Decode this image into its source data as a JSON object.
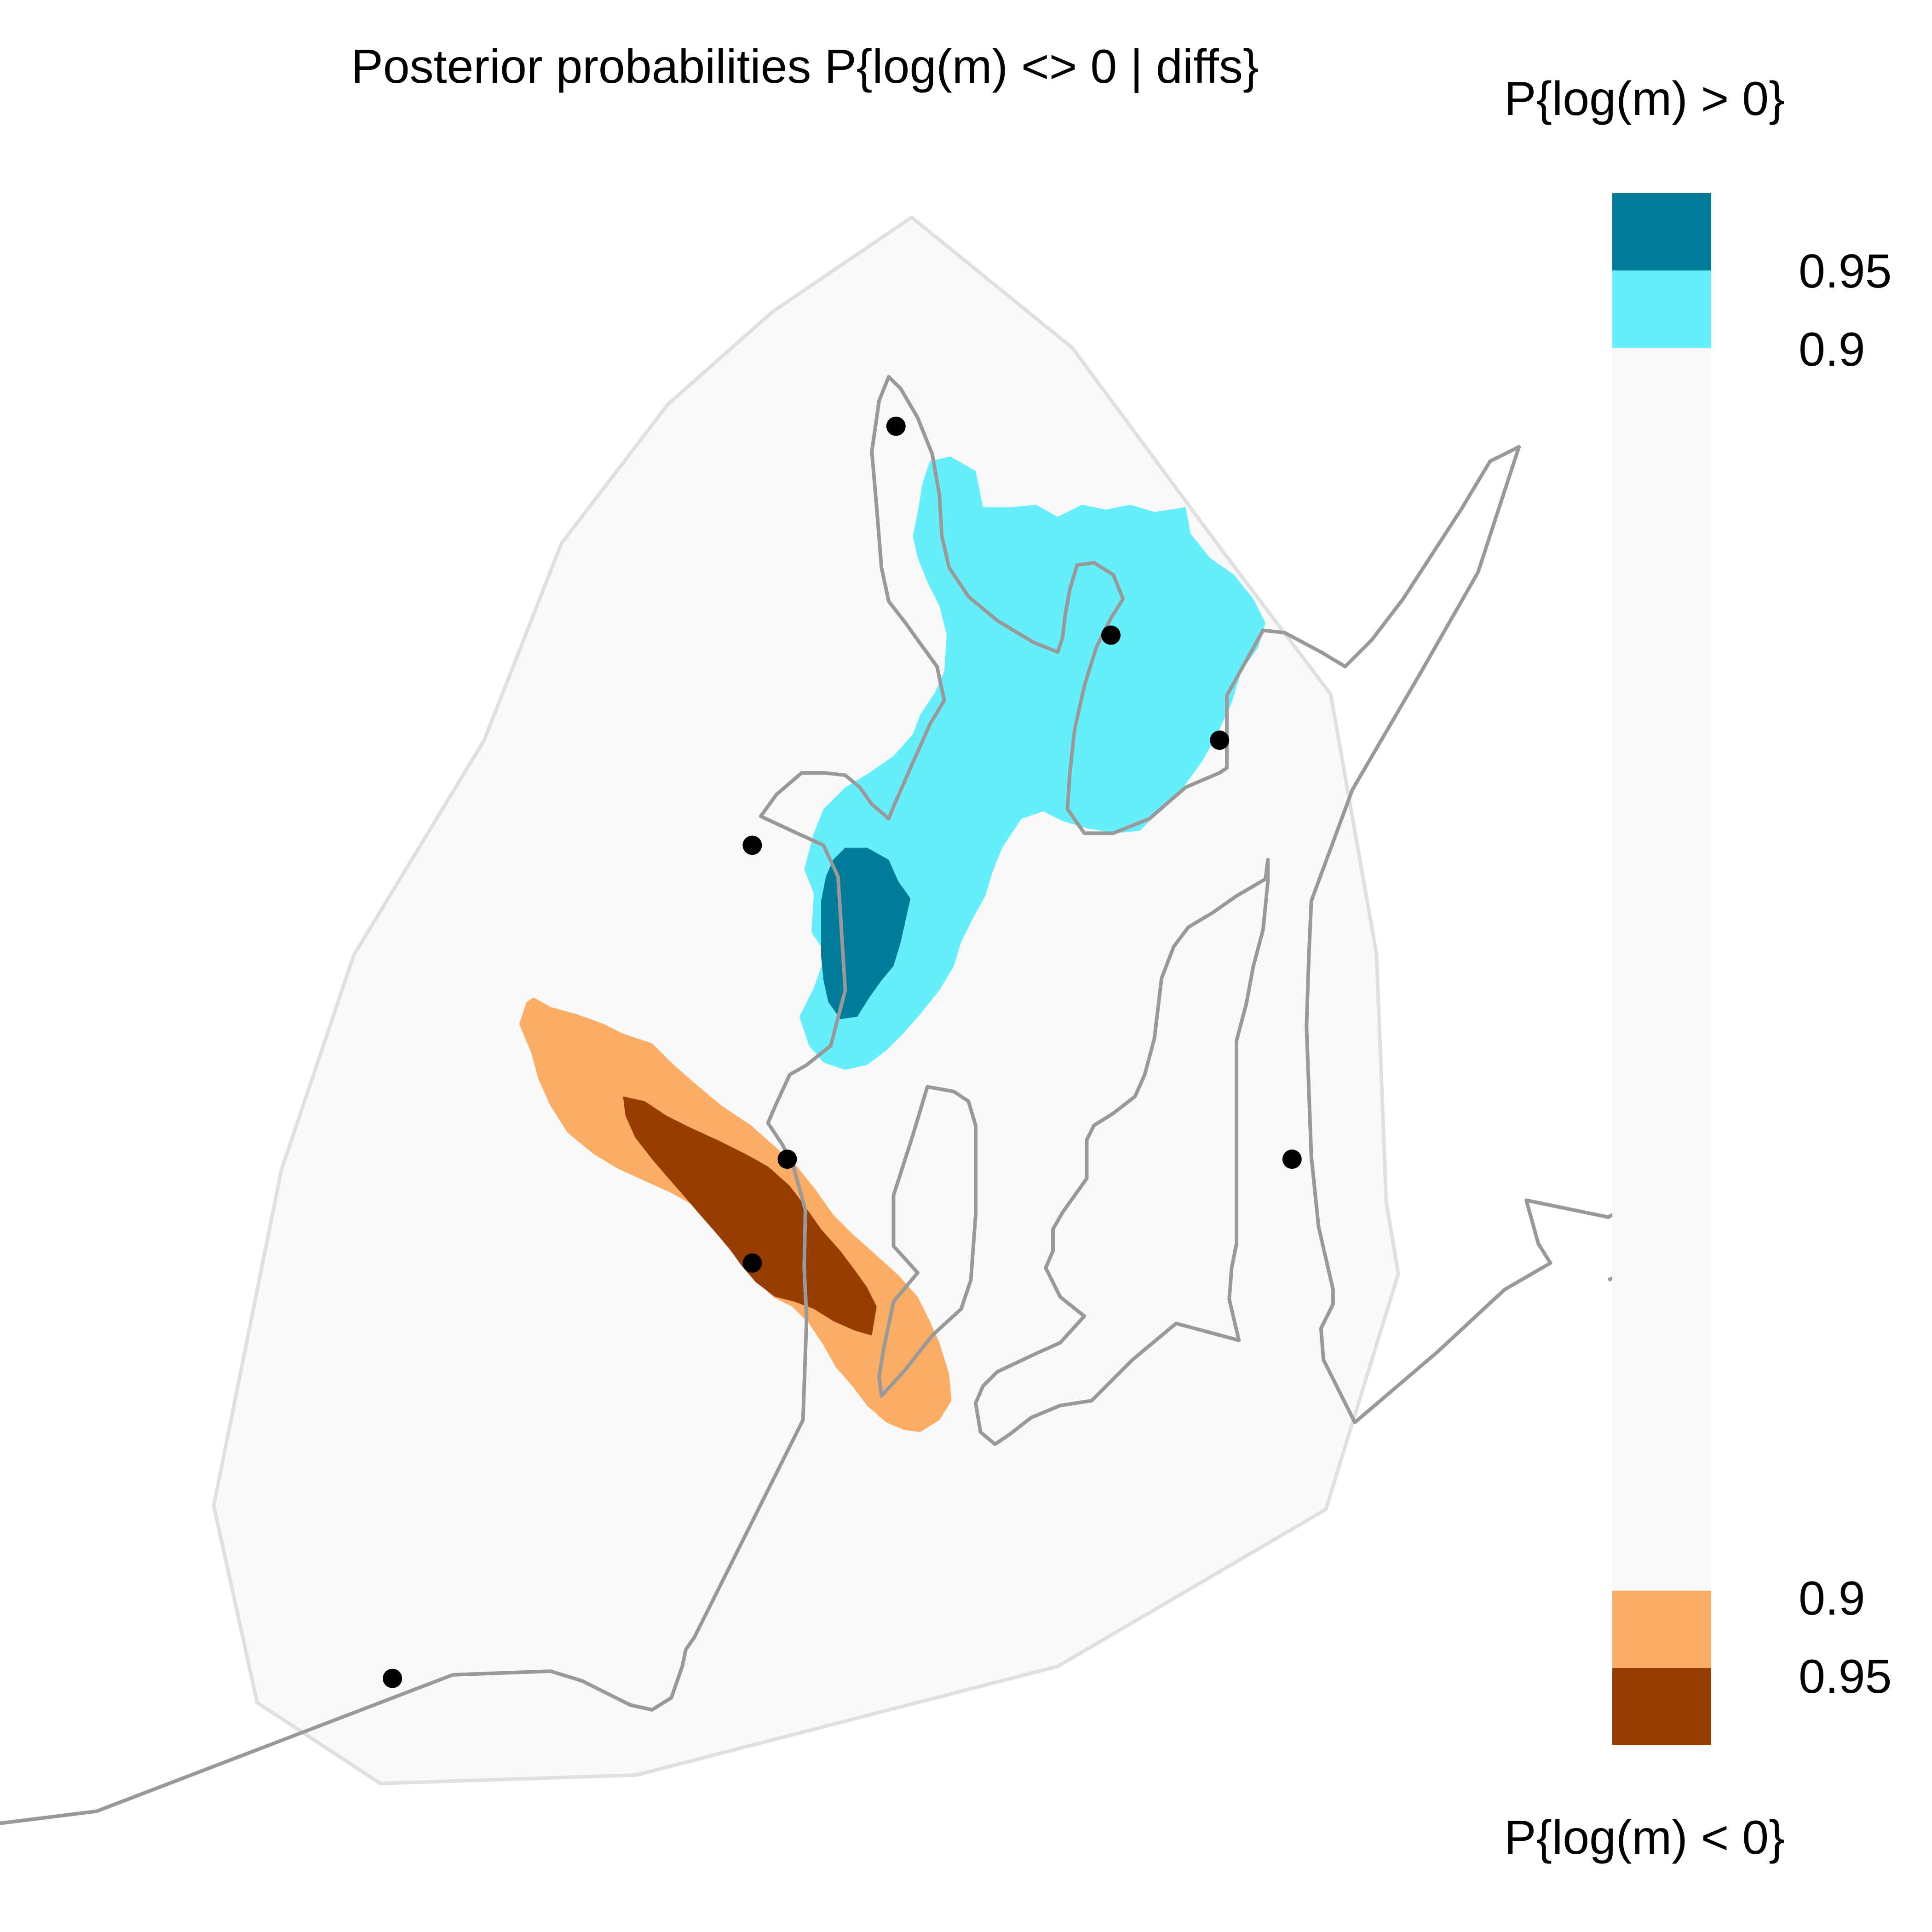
{
  "chart_data": {
    "type": "heatmap",
    "title": "Posterior probabilities P{log(m) <> 0 | diffs}",
    "legend": {
      "placement": "right",
      "top_title": "P{log(m) > 0}",
      "bottom_title": "P{log(m) < 0}",
      "bins": [
        {
          "label": "0.95",
          "color": "#007c99",
          "meaning": "P{log(m) > 0} >= 0.95"
        },
        {
          "label": "0.9",
          "color": "#67eefc",
          "meaning": "P{log(m) > 0} >= 0.9"
        },
        {
          "label": "",
          "color": "#f9f9f9",
          "meaning": "neither"
        },
        {
          "label": "0.9",
          "color": "#fbad66",
          "meaning": "P{log(m) < 0} >= 0.9"
        },
        {
          "label": "0.95",
          "color": "#973d00",
          "meaning": "P{log(m) < 0} >= 0.95"
        }
      ]
    },
    "regions": [
      {
        "name": "habitat",
        "color": "#f9f9f9"
      },
      {
        "name": "positive-0.9",
        "color": "#67eefc"
      },
      {
        "name": "positive-0.95",
        "color": "#007c99"
      },
      {
        "name": "negative-0.9",
        "color": "#fbad66"
      },
      {
        "name": "negative-0.95",
        "color": "#973d00"
      }
    ],
    "sample_sites_count": 9,
    "axes": "none",
    "grid": false
  },
  "colors": {
    "outline": "#e0e0e0",
    "coastline": "#999999",
    "points": "#000000"
  }
}
